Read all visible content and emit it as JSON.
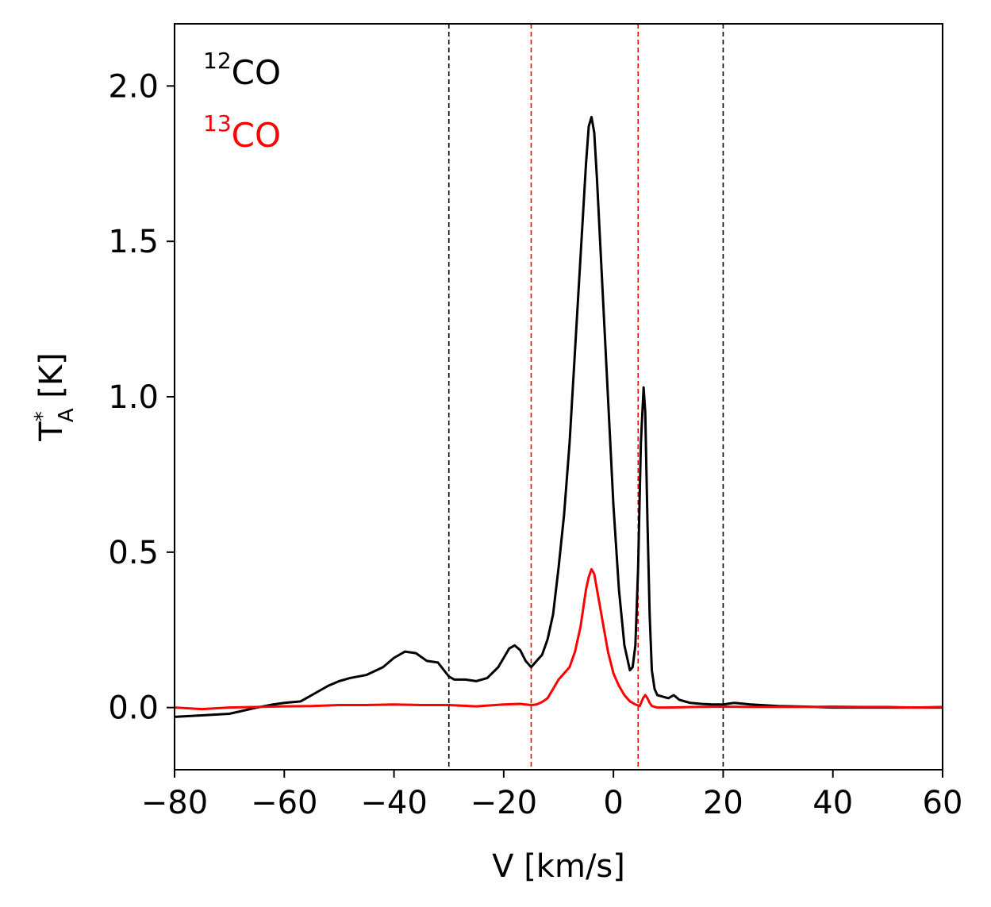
{
  "chart_data": {
    "type": "line",
    "title": "",
    "xlabel": "V [km/s]",
    "ylabel": {
      "main": "T",
      "superscript": "*",
      "subscript": "A",
      "unit": "[K]"
    },
    "xlim": [
      -80,
      60
    ],
    "ylim": [
      -0.2,
      2.2
    ],
    "x_ticks": [
      -80,
      -60,
      -40,
      -20,
      0,
      20,
      40,
      60
    ],
    "x_tick_labels": [
      "−80",
      "−60",
      "−40",
      "−20",
      "0",
      "20",
      "40",
      "60"
    ],
    "y_ticks": [
      0.0,
      0.5,
      1.0,
      1.5,
      2.0
    ],
    "y_tick_labels": [
      "0.0",
      "0.5",
      "1.0",
      "1.5",
      "2.0"
    ],
    "grid": false,
    "legend": {
      "placement": "top-left",
      "entries": [
        {
          "mass_number": "12",
          "species": "CO",
          "color": "#000000"
        },
        {
          "mass_number": "13",
          "species": "CO",
          "color": "#ff0000"
        }
      ]
    },
    "vertical_lines": [
      {
        "x": -30,
        "color": "#000000",
        "style": "dashed"
      },
      {
        "x": 20,
        "color": "#000000",
        "style": "dashed"
      },
      {
        "x": -15,
        "color": "#ff0000",
        "style": "dashed"
      },
      {
        "x": 4.5,
        "color": "#ff0000",
        "style": "dashed"
      }
    ],
    "series": [
      {
        "name": "12CO",
        "color": "#000000",
        "x": [
          -80,
          -75,
          -70,
          -65,
          -62,
          -60,
          -57,
          -55,
          -52,
          -50,
          -48,
          -45,
          -42,
          -40,
          -38,
          -36,
          -34,
          -32,
          -30,
          -29,
          -27,
          -25,
          -23,
          -21,
          -19,
          -18,
          -17,
          -16,
          -15,
          -14,
          -13,
          -12,
          -11,
          -10,
          -9,
          -8,
          -7,
          -6,
          -5,
          -4.5,
          -4,
          -3.5,
          -3,
          -2,
          -1,
          0,
          1,
          2,
          3,
          3.5,
          4,
          4.5,
          5,
          5.5,
          5.8,
          6.2,
          6.6,
          7,
          7.5,
          8,
          9,
          10,
          11,
          12,
          14,
          16,
          18,
          20,
          22,
          25,
          30,
          35,
          40,
          45,
          50,
          55,
          60
        ],
        "values": [
          -0.03,
          -0.025,
          -0.02,
          0.0,
          0.01,
          0.015,
          0.02,
          0.04,
          0.07,
          0.085,
          0.095,
          0.105,
          0.13,
          0.16,
          0.18,
          0.175,
          0.15,
          0.145,
          0.1,
          0.09,
          0.09,
          0.085,
          0.095,
          0.13,
          0.19,
          0.2,
          0.185,
          0.15,
          0.13,
          0.15,
          0.17,
          0.22,
          0.3,
          0.45,
          0.62,
          0.85,
          1.15,
          1.45,
          1.75,
          1.87,
          1.9,
          1.85,
          1.7,
          1.35,
          1.0,
          0.65,
          0.38,
          0.2,
          0.12,
          0.13,
          0.2,
          0.45,
          0.85,
          1.03,
          0.95,
          0.6,
          0.3,
          0.12,
          0.06,
          0.04,
          0.035,
          0.03,
          0.04,
          0.025,
          0.015,
          0.012,
          0.01,
          0.01,
          0.015,
          0.01,
          0.005,
          0.003,
          0.0,
          0.0,
          0.0,
          0.0,
          0.0
        ]
      },
      {
        "name": "13CO",
        "color": "#ff0000",
        "x": [
          -80,
          -75,
          -70,
          -65,
          -60,
          -55,
          -50,
          -45,
          -40,
          -35,
          -30,
          -25,
          -20,
          -17,
          -15,
          -14,
          -13,
          -12,
          -11,
          -10,
          -9,
          -8,
          -7,
          -6,
          -5,
          -4.5,
          -4,
          -3.5,
          -3,
          -2.5,
          -2,
          -1,
          0,
          1,
          2,
          3,
          4,
          4.8,
          5.4,
          5.8,
          6.2,
          6.6,
          7,
          8,
          10,
          15,
          20,
          25,
          30,
          35,
          40,
          45,
          50,
          55,
          60
        ],
        "values": [
          0.0,
          -0.005,
          0.0,
          0.002,
          0.004,
          0.005,
          0.008,
          0.008,
          0.01,
          0.008,
          0.008,
          0.004,
          0.01,
          0.012,
          0.008,
          0.01,
          0.018,
          0.03,
          0.06,
          0.09,
          0.11,
          0.13,
          0.18,
          0.26,
          0.38,
          0.42,
          0.445,
          0.43,
          0.38,
          0.33,
          0.28,
          0.18,
          0.11,
          0.07,
          0.04,
          0.02,
          0.01,
          0.005,
          0.03,
          0.04,
          0.03,
          0.015,
          0.005,
          0.0,
          0.0,
          0.002,
          0.003,
          0.002,
          0.002,
          0.002,
          0.003,
          0.002,
          0.002,
          0.0,
          0.002
        ]
      }
    ]
  }
}
